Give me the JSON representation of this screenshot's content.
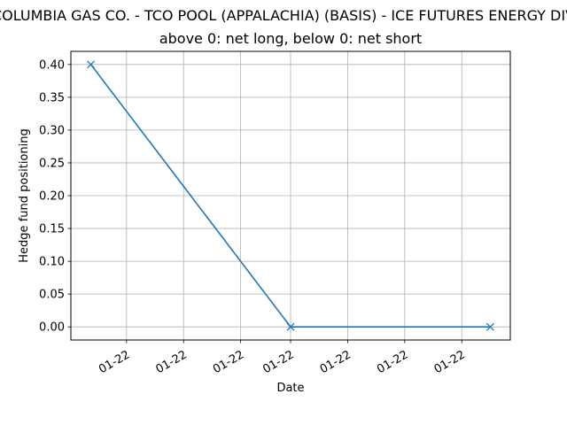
{
  "chart_data": {
    "type": "line",
    "title": "COLUMBIA GAS CO. - TCO POOL (APPALACHIA) (BASIS) - ICE FUTURES ENERGY DIV",
    "subtitle": "above 0: net long, below 0: net short",
    "xlabel": "Date",
    "ylabel": "Hedge fund positioning",
    "x_tick_labels": [
      "01-22",
      "01-22",
      "01-22",
      "01-22",
      "01-22",
      "01-22",
      "01-22"
    ],
    "y_ticks": [
      0.0,
      0.05,
      0.1,
      0.15,
      0.2,
      0.25,
      0.3,
      0.35,
      0.4
    ],
    "y_tick_labels": [
      "0.00",
      "0.05",
      "0.10",
      "0.15",
      "0.20",
      "0.25",
      "0.30",
      "0.35",
      "0.40"
    ],
    "ylim": [
      -0.02,
      0.42
    ],
    "grid": true,
    "marker": "x",
    "series": [
      {
        "color": "#1f77b4",
        "points": [
          {
            "x": 0.0,
            "y": 0.4
          },
          {
            "x": 3.5,
            "y": 0.0
          },
          {
            "x": 7.0,
            "y": 0.0
          }
        ]
      }
    ],
    "x_ticks": [
      0.625,
      1.625,
      2.625,
      3.5,
      4.5,
      5.5,
      6.5
    ],
    "xlim": [
      -0.35,
      7.35
    ]
  }
}
